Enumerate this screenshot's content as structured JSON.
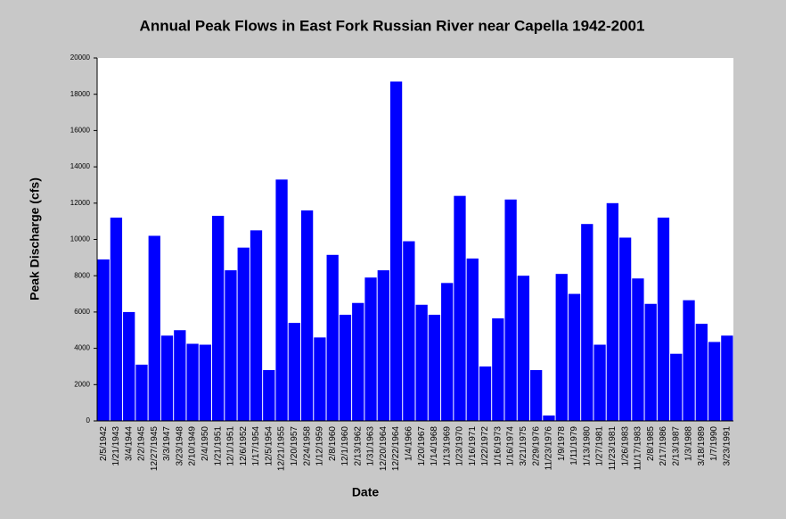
{
  "chart_data": {
    "type": "bar",
    "title": "Annual Peak Flows in East Fork Russian River near Capella 1942-2001",
    "x_label": "Date",
    "y_label": "Peak Discharge (cfs)",
    "categories": [
      "2/5/1942",
      "1/21/1943",
      "3/4/1944",
      "2/2/1945",
      "12/27/1945",
      "3/3/1947",
      "3/23/1948",
      "2/10/1949",
      "2/4/1950",
      "1/21/1951",
      "12/1/1951",
      "12/6/1952",
      "1/17/1954",
      "12/5/1954",
      "12/21/1955",
      "1/20/1957",
      "2/24/1958",
      "1/12/1959",
      "2/8/1960",
      "12/1/1960",
      "2/13/1962",
      "1/31/1963",
      "12/20/1964",
      "12/22/1964",
      "1/4/1966",
      "1/20/1967",
      "1/14/1968",
      "1/13/1969",
      "1/23/1970",
      "1/16/1971",
      "1/22/1972",
      "1/16/1973",
      "1/16/1974",
      "3/21/1975",
      "2/29/1976",
      "11/23/1976",
      "1/9/1978",
      "1/11/1979",
      "1/13/1980",
      "1/27/1981",
      "11/23/1981",
      "1/26/1983",
      "11/17/1983",
      "2/8/1985",
      "2/17/1986",
      "2/13/1987",
      "1/3/1988",
      "3/18/1989",
      "1/7/1990",
      "3/23/1991"
    ],
    "values": [
      8900,
      11200,
      6000,
      3100,
      10200,
      4700,
      5000,
      4250,
      4200,
      11300,
      8300,
      9550,
      10500,
      2800,
      13300,
      5400,
      11600,
      4600,
      9150,
      5850,
      6500,
      7900,
      8300,
      18700,
      9900,
      6400,
      5850,
      7600,
      12400,
      8950,
      3000,
      5650,
      12200,
      8000,
      2800,
      300,
      8100,
      7000,
      10850,
      4200,
      12000,
      10100,
      7850,
      6450,
      11200,
      3700,
      6650,
      5350,
      4350,
      4700
    ],
    "color": "#0000ff",
    "ylim": [
      0,
      20000
    ],
    "yticks": [
      0,
      2000,
      4000,
      6000,
      8000,
      10000,
      12000,
      14000,
      16000,
      18000,
      20000
    ],
    "grid": false
  }
}
